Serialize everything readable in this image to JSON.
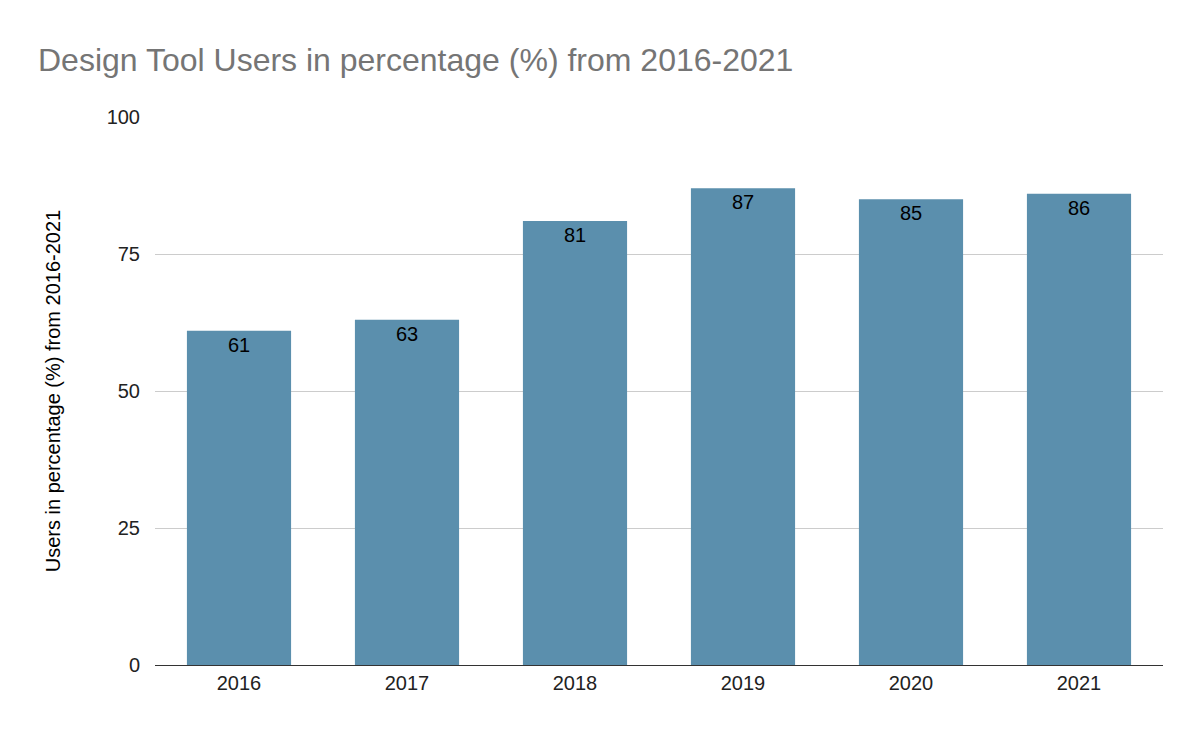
{
  "chart_data": {
    "type": "bar",
    "title": "Design Tool Users in percentage (%) from 2016-2021",
    "y_label": "Users in percentage (%) from 2016-2021",
    "categories": [
      "2016",
      "2017",
      "2018",
      "2019",
      "2020",
      "2021"
    ],
    "values": [
      61,
      63,
      81,
      87,
      85,
      86
    ],
    "color": "#5b8fad",
    "ylim": [
      0,
      100
    ],
    "yticks": [
      0,
      25,
      50,
      75,
      100
    ],
    "grid": true,
    "data_labels": true
  }
}
